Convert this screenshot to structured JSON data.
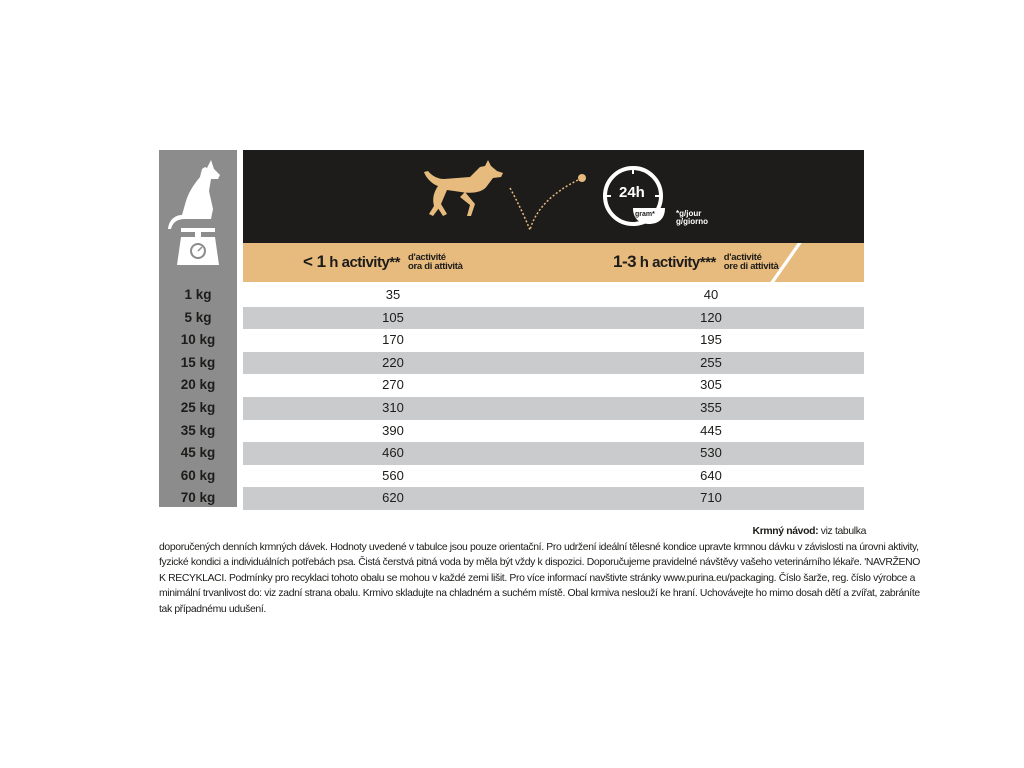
{
  "header": {
    "icons": [
      "dog-on-scale-icon",
      "running-dog-icon",
      "ball-bounce-icon",
      "clock-24h-bowl-icon"
    ],
    "clock_label": "24h",
    "bowl_label": "gram*",
    "unit_note_1": "*g/jour",
    "unit_note_2": "g/giorno"
  },
  "columns": [
    {
      "prefix": "< 1",
      "suffix": " h activity**",
      "sub1": "d'activité",
      "sub2": "ora di attività"
    },
    {
      "prefix": "1-3",
      "suffix": " h activity***",
      "sub1": "d'activité",
      "sub2": "ore di attività"
    }
  ],
  "rows": [
    {
      "weight": "1 kg",
      "low": "35",
      "high": "40"
    },
    {
      "weight": "5 kg",
      "low": "105",
      "high": "120"
    },
    {
      "weight": "10 kg",
      "low": "170",
      "high": "195"
    },
    {
      "weight": "15 kg",
      "low": "220",
      "high": "255"
    },
    {
      "weight": "20 kg",
      "low": "270",
      "high": "305"
    },
    {
      "weight": "25 kg",
      "low": "310",
      "high": "355"
    },
    {
      "weight": "35 kg",
      "low": "390",
      "high": "445"
    },
    {
      "weight": "45 kg",
      "low": "460",
      "high": "530"
    },
    {
      "weight": "60 kg",
      "low": "560",
      "high": "640"
    },
    {
      "weight": "70 kg",
      "low": "620",
      "high": "710"
    }
  ],
  "note": {
    "title": "Krmný návod:",
    "title_rest": " viz tabulka",
    "lines": [
      "doporučených denních krmných dávek. Hodnoty uvedené v tabulce jsou pouze orientační. Pro udržení ideální tělesné kondice upravte krmnou dávku v závislosti na úrovni aktivity,",
      "fyzické kondici a individuálních potřebách psa. Čistá čerstvá pitná voda by měla být vždy k dispozici. Doporučujeme pravidelné návštěvy vašeho veterinárního lékaře. 'NAVRŽENO",
      "K RECYKLACI. Podmínky pro recyklaci tohoto obalu se mohou v každé zemi lišit. Pro více informací navštivte stránky www.purina.eu/packaging. Číslo šarže, reg. číslo výrobce a",
      "minimální trvanlivost do: viz zadní strana obalu. Krmivo skladujte na chladném a suchém místě. Obal krmiva neslouží ke hraní. Uchovávejte ho mimo dosah dětí a zvířat, zabráníte",
      "tak případnému udušení."
    ]
  },
  "colors": {
    "tan": "#e7bb7d",
    "header": "#1d1c1a",
    "left_column": "#8c8c8c",
    "alt_row": "#cacbcd"
  }
}
